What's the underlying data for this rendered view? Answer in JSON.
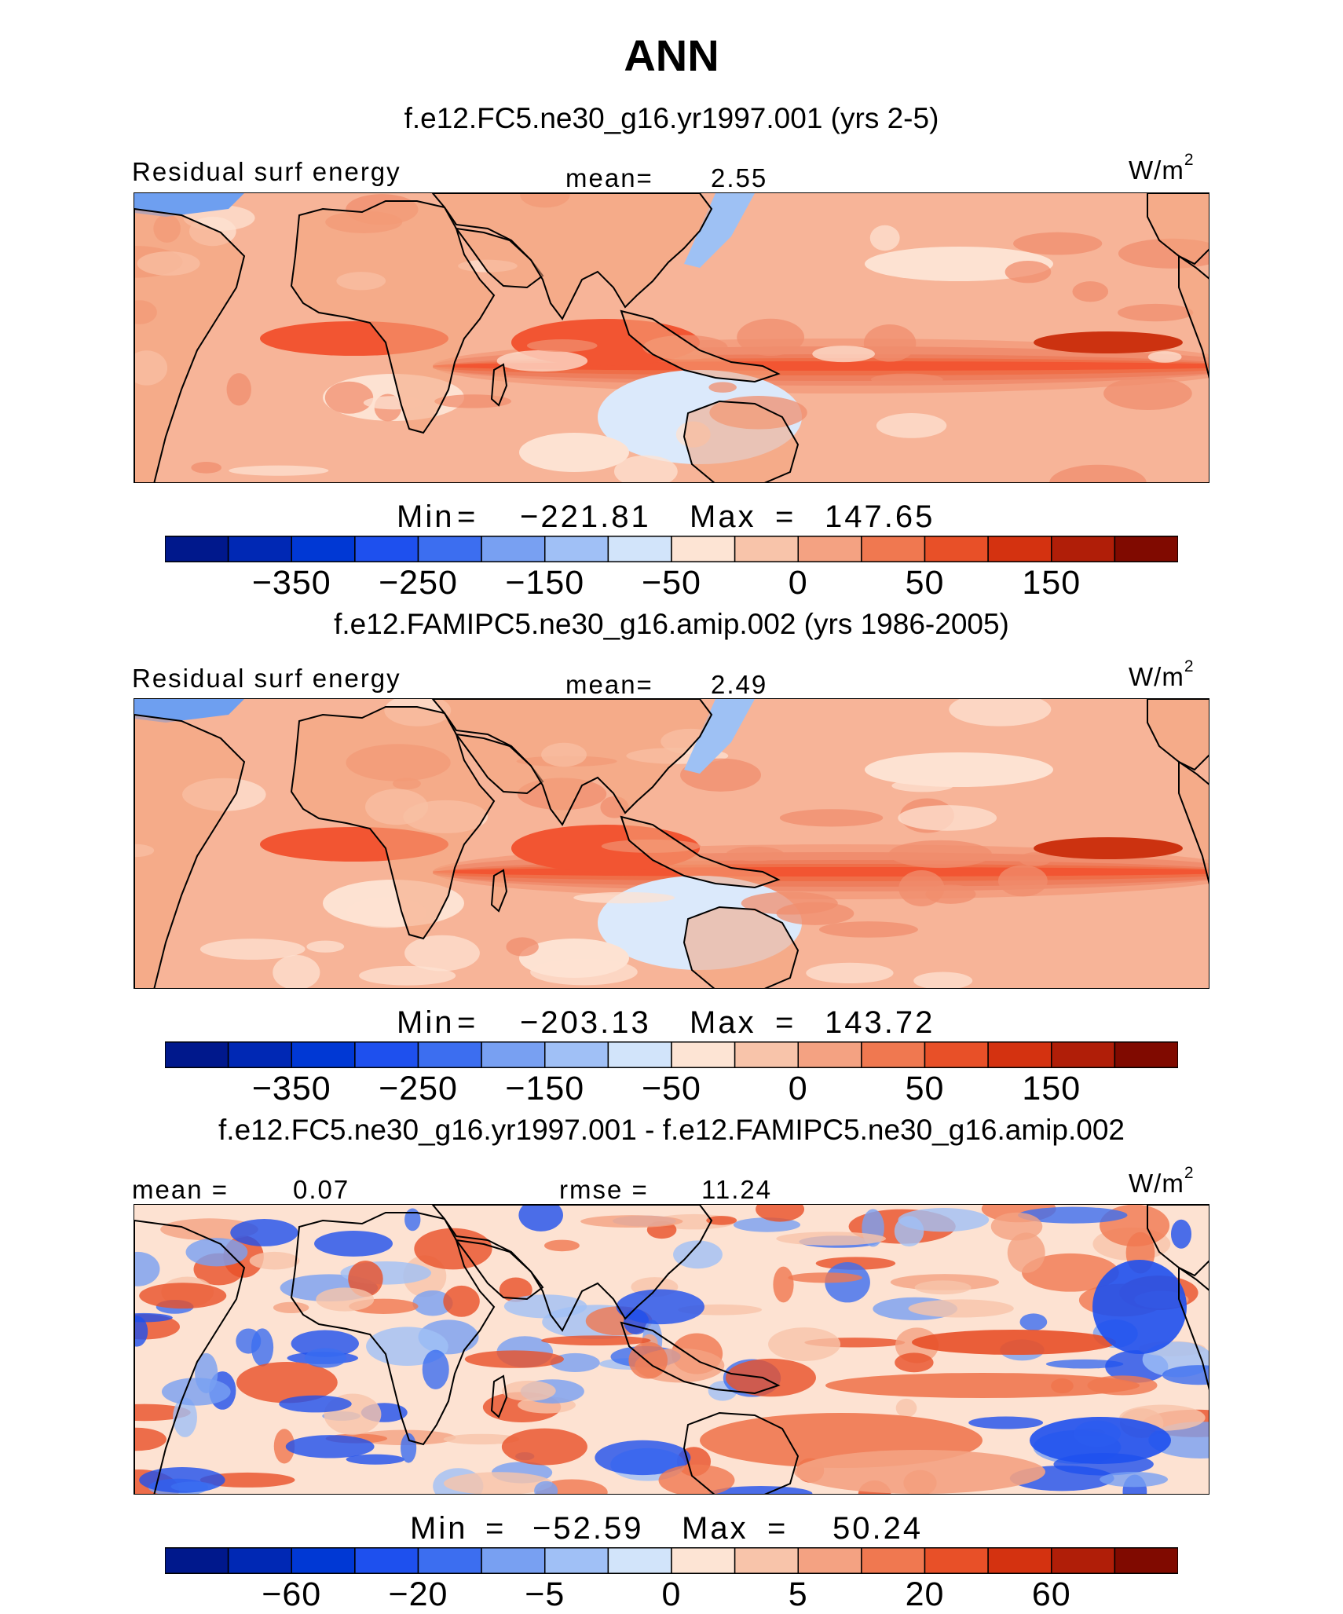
{
  "title": "ANN",
  "units": "W/m",
  "units_sup": "2",
  "colors": {
    "map_palette": [
      "#f7b498",
      "#f49f80",
      "#f08d6e",
      "#ee7e5d",
      "#ef6e48",
      "#f25532",
      "#e8461d",
      "#cc3210",
      "#fde2d2",
      "#dbe9fb",
      "#9ec1f4",
      "#6e9ff0"
    ],
    "land": "#f4a47e"
  },
  "chart_data": [
    {
      "type": "heatmap",
      "subtitle": "f.e12.FC5.ne30_g16.yr1997.001 (yrs 2-5)",
      "variable": "Residual surf energy",
      "mean_label": "mean=",
      "mean": "2.55",
      "min_label": "Min",
      "max_label": "Max",
      "min": "−221.81",
      "max": "147.65",
      "colorbar": {
        "colors": [
          "#00188c",
          "#0028b4",
          "#0038d4",
          "#1e50ee",
          "#3c6ef0",
          "#78a0f2",
          "#a0c0f6",
          "#d2e4fa",
          "#fde4d4",
          "#f8c4aa",
          "#f4a282",
          "#f07850",
          "#e85028",
          "#d43210",
          "#b01e08",
          "#800a00"
        ],
        "tick_labels": [
          "−350",
          "−250",
          "−150",
          "−50",
          "0",
          "50",
          "150"
        ],
        "tick_index": [
          2,
          4,
          6,
          8,
          10,
          12,
          14
        ]
      }
    },
    {
      "type": "heatmap",
      "subtitle": "f.e12.FAMIPC5.ne30_g16.amip.002 (yrs 1986-2005)",
      "variable": "Residual surf energy",
      "mean_label": "mean=",
      "mean": "2.49",
      "min_label": "Min",
      "max_label": "Max",
      "min": "−203.13",
      "max": "143.72",
      "colorbar": {
        "colors": [
          "#00188c",
          "#0028b4",
          "#0038d4",
          "#1e50ee",
          "#3c6ef0",
          "#78a0f2",
          "#a0c0f6",
          "#d2e4fa",
          "#fde4d4",
          "#f8c4aa",
          "#f4a282",
          "#f07850",
          "#e85028",
          "#d43210",
          "#b01e08",
          "#800a00"
        ],
        "tick_labels": [
          "−350",
          "−250",
          "−150",
          "−50",
          "0",
          "50",
          "150"
        ],
        "tick_index": [
          2,
          4,
          6,
          8,
          10,
          12,
          14
        ]
      }
    },
    {
      "type": "heatmap",
      "subtitle": "f.e12.FC5.ne30_g16.yr1997.001 - f.e12.FAMIPC5.ne30_g16.amip.002",
      "mean_label": "mean =",
      "mean": "0.07",
      "rmse_label": "rmse =",
      "rmse": "11.24",
      "min_label": "Min",
      "max_label": "Max",
      "min": "−52.59",
      "max": "50.24",
      "colorbar": {
        "colors": [
          "#00188c",
          "#0028b4",
          "#0038d4",
          "#1e50ee",
          "#3c6ef0",
          "#78a0f2",
          "#a0c0f6",
          "#d2e4fa",
          "#fde4d4",
          "#f8c4aa",
          "#f4a282",
          "#f07850",
          "#e85028",
          "#d43210",
          "#b01e08",
          "#800a00"
        ],
        "tick_labels": [
          "−60",
          "−20",
          "−5",
          "0",
          "5",
          "20",
          "60"
        ],
        "tick_index": [
          2,
          4,
          6,
          8,
          10,
          12,
          14
        ]
      }
    }
  ]
}
